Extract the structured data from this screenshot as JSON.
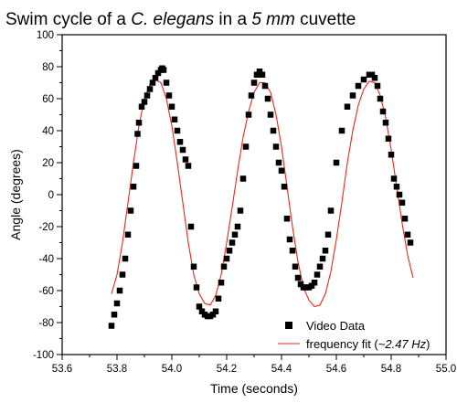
{
  "chart_data": {
    "type": "scatter",
    "title": {
      "parts": [
        {
          "text": "Swim cycle of a ",
          "italic": false
        },
        {
          "text": "C. elegans",
          "italic": true
        },
        {
          "text": " in a ",
          "italic": false
        },
        {
          "text": "5 mm",
          "italic": true
        },
        {
          "text": " cuvette",
          "italic": false
        }
      ]
    },
    "xlabel": "Time (seconds)",
    "ylabel": "Angle (degrees)",
    "xlim": [
      53.6,
      55.0
    ],
    "ylim": [
      -100,
      100
    ],
    "x_ticks": [
      53.6,
      53.8,
      54.0,
      54.2,
      54.4,
      54.6,
      54.8,
      55.0
    ],
    "x_tick_labels": [
      "53.6",
      "53.8",
      "54.0",
      "54.2",
      "54.4",
      "54.6",
      "54.8",
      "55.0"
    ],
    "y_ticks": [
      -100,
      -80,
      -60,
      -40,
      -20,
      0,
      20,
      40,
      60,
      80,
      100
    ],
    "y_tick_labels": [
      "-100",
      "-80",
      "-60",
      "-40",
      "-20",
      "0",
      "20",
      "40",
      "60",
      "80",
      "100"
    ],
    "grid": false,
    "legend_position": "bottom-right",
    "series": [
      {
        "name": "Video Data",
        "kind": "scatter",
        "marker": "square",
        "color": "#000000",
        "points": [
          [
            53.78,
            -82
          ],
          [
            53.79,
            -75
          ],
          [
            53.8,
            -68
          ],
          [
            53.81,
            -60
          ],
          [
            53.82,
            -50
          ],
          [
            53.83,
            -40
          ],
          [
            53.84,
            -25
          ],
          [
            53.85,
            -10
          ],
          [
            53.86,
            5
          ],
          [
            53.87,
            18
          ],
          [
            53.875,
            38
          ],
          [
            53.88,
            45
          ],
          [
            53.89,
            55
          ],
          [
            53.9,
            58
          ],
          [
            53.91,
            62
          ],
          [
            53.92,
            66
          ],
          [
            53.93,
            70
          ],
          [
            53.94,
            73
          ],
          [
            53.95,
            76
          ],
          [
            53.96,
            78
          ],
          [
            53.965,
            79
          ],
          [
            53.97,
            78
          ],
          [
            53.98,
            70
          ],
          [
            53.99,
            62
          ],
          [
            54.0,
            55
          ],
          [
            54.01,
            47
          ],
          [
            54.02,
            40
          ],
          [
            54.03,
            33
          ],
          [
            54.04,
            28
          ],
          [
            54.05,
            22
          ],
          [
            54.06,
            18
          ],
          [
            54.07,
            -20
          ],
          [
            54.08,
            -45
          ],
          [
            54.09,
            -58
          ],
          [
            54.1,
            -70
          ],
          [
            54.11,
            -73
          ],
          [
            54.12,
            -75
          ],
          [
            54.13,
            -76
          ],
          [
            54.14,
            -76
          ],
          [
            54.15,
            -75
          ],
          [
            54.16,
            -73
          ],
          [
            54.17,
            -65
          ],
          [
            54.18,
            -55
          ],
          [
            54.19,
            -45
          ],
          [
            54.2,
            -40
          ],
          [
            54.21,
            -35
          ],
          [
            54.22,
            -30
          ],
          [
            54.23,
            -25
          ],
          [
            54.24,
            -20
          ],
          [
            54.25,
            -10
          ],
          [
            54.26,
            10
          ],
          [
            54.27,
            30
          ],
          [
            54.28,
            50
          ],
          [
            54.29,
            62
          ],
          [
            54.3,
            70
          ],
          [
            54.31,
            75
          ],
          [
            54.32,
            77
          ],
          [
            54.33,
            75
          ],
          [
            54.34,
            68
          ],
          [
            54.35,
            60
          ],
          [
            54.36,
            50
          ],
          [
            54.37,
            40
          ],
          [
            54.38,
            30
          ],
          [
            54.39,
            20
          ],
          [
            54.4,
            15
          ],
          [
            54.41,
            5
          ],
          [
            54.42,
            -15
          ],
          [
            54.43,
            -28
          ],
          [
            54.44,
            -35
          ],
          [
            54.45,
            -45
          ],
          [
            54.46,
            -52
          ],
          [
            54.47,
            -56
          ],
          [
            54.48,
            -58
          ],
          [
            54.49,
            -58
          ],
          [
            54.5,
            -58
          ],
          [
            54.51,
            -57
          ],
          [
            54.52,
            -55
          ],
          [
            54.53,
            -50
          ],
          [
            54.54,
            -45
          ],
          [
            54.55,
            -40
          ],
          [
            54.56,
            -35
          ],
          [
            54.57,
            -25
          ],
          [
            54.58,
            -10
          ],
          [
            54.6,
            20
          ],
          [
            54.62,
            40
          ],
          [
            54.64,
            55
          ],
          [
            54.66,
            62
          ],
          [
            54.68,
            68
          ],
          [
            54.7,
            72
          ],
          [
            54.72,
            75
          ],
          [
            54.73,
            75
          ],
          [
            54.74,
            73
          ],
          [
            54.75,
            68
          ],
          [
            54.76,
            60
          ],
          [
            54.77,
            52
          ],
          [
            54.78,
            45
          ],
          [
            54.79,
            35
          ],
          [
            54.8,
            25
          ],
          [
            54.81,
            10
          ],
          [
            54.82,
            5
          ],
          [
            54.83,
            0
          ],
          [
            54.84,
            -5
          ],
          [
            54.85,
            -15
          ],
          [
            54.86,
            -25
          ],
          [
            54.87,
            -30
          ]
        ]
      },
      {
        "name": "frequency fit (~2.47 Hz)",
        "name_parts": [
          {
            "text": "frequency fit (",
            "italic": false
          },
          {
            "text": "~2.47 Hz",
            "italic": true
          },
          {
            "text": ")",
            "italic": false
          }
        ],
        "kind": "line",
        "color": "#e8281c",
        "points": [
          [
            53.78,
            -62
          ],
          [
            53.8,
            -50
          ],
          [
            53.82,
            -30
          ],
          [
            53.84,
            -5
          ],
          [
            53.86,
            20
          ],
          [
            53.88,
            43
          ],
          [
            53.9,
            60
          ],
          [
            53.92,
            69
          ],
          [
            53.94,
            72
          ],
          [
            53.96,
            70
          ],
          [
            53.98,
            60
          ],
          [
            54.0,
            43
          ],
          [
            54.02,
            20
          ],
          [
            54.04,
            -5
          ],
          [
            54.06,
            -30
          ],
          [
            54.08,
            -50
          ],
          [
            54.1,
            -62
          ],
          [
            54.12,
            -68
          ],
          [
            54.14,
            -69
          ],
          [
            54.16,
            -63
          ],
          [
            54.18,
            -50
          ],
          [
            54.2,
            -30
          ],
          [
            54.22,
            -8
          ],
          [
            54.24,
            15
          ],
          [
            54.26,
            36
          ],
          [
            54.28,
            52
          ],
          [
            54.3,
            64
          ],
          [
            54.32,
            70
          ],
          [
            54.34,
            70
          ],
          [
            54.36,
            64
          ],
          [
            54.38,
            50
          ],
          [
            54.4,
            30
          ],
          [
            54.42,
            5
          ],
          [
            54.44,
            -20
          ],
          [
            54.46,
            -42
          ],
          [
            54.48,
            -58
          ],
          [
            54.5,
            -66
          ],
          [
            54.52,
            -70
          ],
          [
            54.54,
            -69
          ],
          [
            54.56,
            -62
          ],
          [
            54.58,
            -48
          ],
          [
            54.6,
            -28
          ],
          [
            54.62,
            -5
          ],
          [
            54.64,
            20
          ],
          [
            54.66,
            40
          ],
          [
            54.68,
            56
          ],
          [
            54.7,
            66
          ],
          [
            54.72,
            71
          ],
          [
            54.74,
            70
          ],
          [
            54.76,
            62
          ],
          [
            54.78,
            48
          ],
          [
            54.8,
            28
          ],
          [
            54.82,
            5
          ],
          [
            54.84,
            -18
          ],
          [
            54.86,
            -38
          ],
          [
            54.88,
            -52
          ]
        ]
      }
    ]
  }
}
